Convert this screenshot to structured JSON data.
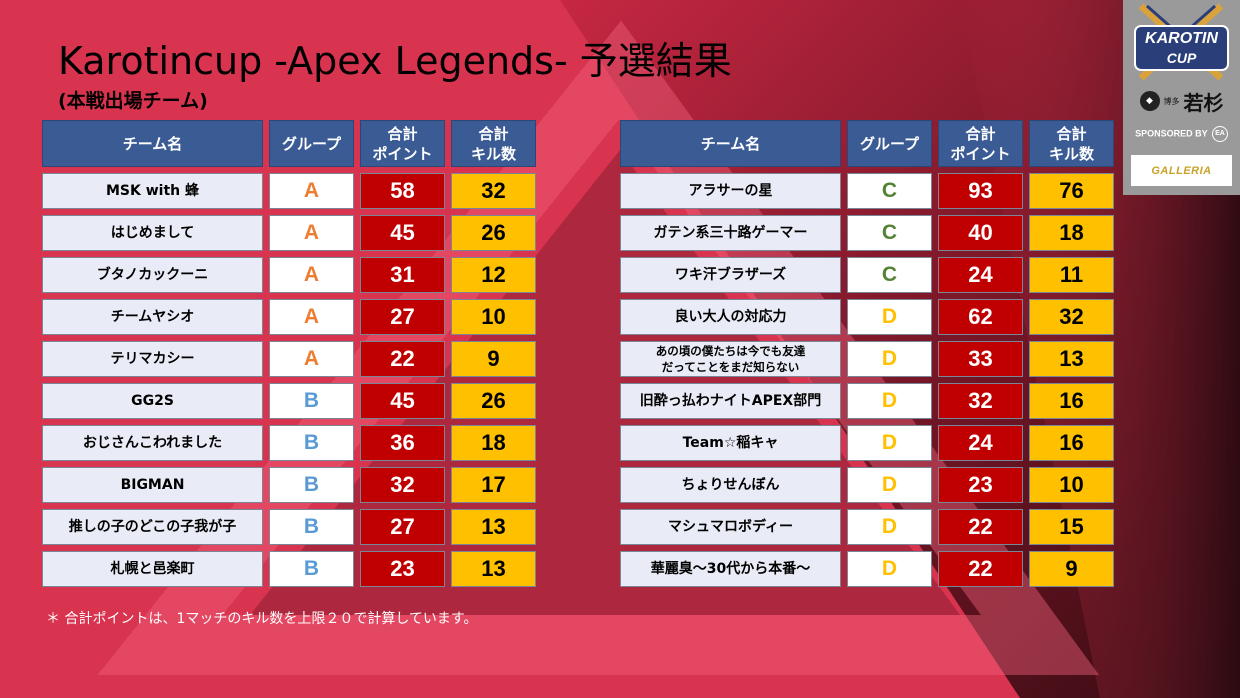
{
  "title": "Karotincup -Apex Legends- 予選結果",
  "subtitle": "(本戦出場チーム)",
  "headers": {
    "team": "チーム名",
    "group": "グループ",
    "points_line1": "合計",
    "points_line2": "ポイント",
    "kills_line1": "合計",
    "kills_line2": "キル数"
  },
  "left_rows": [
    {
      "team": "MSK with 蜂",
      "group": "A",
      "points": "58",
      "kills": "32"
    },
    {
      "team": "はじめまして",
      "group": "A",
      "points": "45",
      "kills": "26"
    },
    {
      "team": "ブタノカックーニ",
      "group": "A",
      "points": "31",
      "kills": "12"
    },
    {
      "team": "チームヤシオ",
      "group": "A",
      "points": "27",
      "kills": "10"
    },
    {
      "team": "テリマカシー",
      "group": "A",
      "points": "22",
      "kills": "9"
    },
    {
      "team": "GG2S",
      "group": "B",
      "points": "45",
      "kills": "26"
    },
    {
      "team": "おじさんこわれました",
      "group": "B",
      "points": "36",
      "kills": "18"
    },
    {
      "team": "BIGMAN",
      "group": "B",
      "points": "32",
      "kills": "17"
    },
    {
      "team": "推しの子のどこの子我が子",
      "group": "B",
      "points": "27",
      "kills": "13"
    },
    {
      "team": "札幌と邑楽町",
      "group": "B",
      "points": "23",
      "kills": "13"
    }
  ],
  "right_rows": [
    {
      "team": "アラサーの星",
      "group": "C",
      "points": "93",
      "kills": "76"
    },
    {
      "team": "ガテン系三十路ゲーマー",
      "group": "C",
      "points": "40",
      "kills": "18"
    },
    {
      "team": "ワキ汗ブラザーズ",
      "group": "C",
      "points": "24",
      "kills": "11"
    },
    {
      "team": "良い大人の対応力",
      "group": "D",
      "points": "62",
      "kills": "32"
    },
    {
      "team_line1": "あの頃の僕たちは今でも友達",
      "team_line2": "だってことをまだ知らない",
      "group": "D",
      "points": "33",
      "kills": "13"
    },
    {
      "team": "旧酔っ払わナイトAPEX部門",
      "group": "D",
      "points": "32",
      "kills": "16"
    },
    {
      "team": "Team☆稲キャ",
      "group": "D",
      "points": "24",
      "kills": "16"
    },
    {
      "team": "ちょりせんぼん",
      "group": "D",
      "points": "23",
      "kills": "10"
    },
    {
      "team": "マシュマロボディー",
      "group": "D",
      "points": "22",
      "kills": "15"
    },
    {
      "team": "華麗臭～30代から本番～",
      "group": "D",
      "points": "22",
      "kills": "9"
    }
  ],
  "note": "＊ 合計ポイントは、1マッチのキル数を上限２０で計算しています。",
  "sponsors": {
    "logo_line1": "KAROTIN",
    "logo_line2": "CUP",
    "wakasugi_small": "博多",
    "wakasugi_big": "若杉",
    "sponsored_by": "SPONSORED BY",
    "ea_icon_name": "ea-logo-icon",
    "ea_text": "EA",
    "galleria": "GALLERIA"
  },
  "colors": {
    "header_bg": "#3b5b95",
    "points_bg": "#c00000",
    "kills_bg": "#ffc000",
    "group_A": "#ed7d31",
    "group_B": "#5b9bd5",
    "group_C": "#548235",
    "group_D": "#ffc000"
  }
}
